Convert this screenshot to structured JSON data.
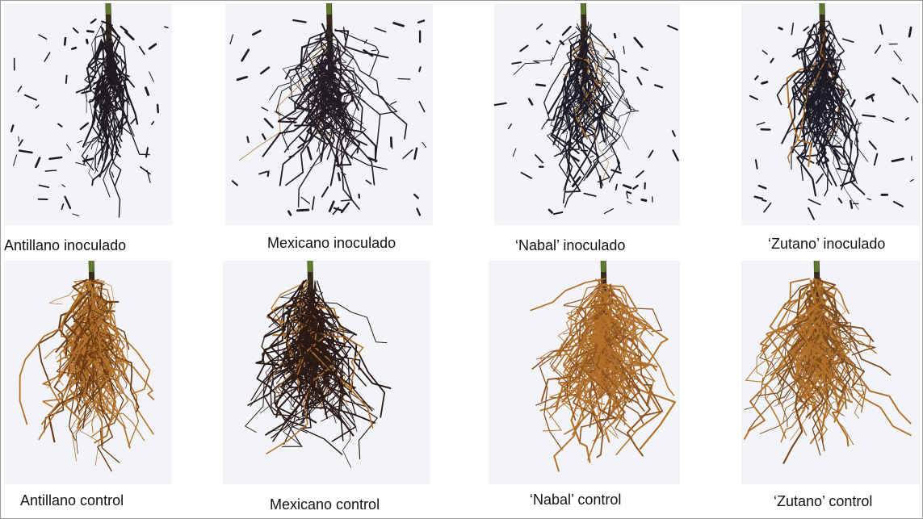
{
  "panels": [
    {
      "caption": "Antillano inoculado",
      "root_color": "#1f1a22"
    },
    {
      "caption": "Mexicano inoculado",
      "root_color": "#241c24"
    },
    {
      "caption": "‘Nabal’ inoculado",
      "root_color": "#1d1a25"
    },
    {
      "caption": "‘Zutano’ inoculado",
      "root_color": "#1e1b26"
    },
    {
      "caption": "Antillano control",
      "root_color": "#6b3b14"
    },
    {
      "caption": "Mexicano control",
      "root_color": "#2a1a16"
    },
    {
      "caption": "‘Nabal’ control",
      "root_color": "#8a5020"
    },
    {
      "caption": "‘Zutano’ control",
      "root_color": "#7a4a1e"
    }
  ],
  "colors": {
    "background": "#f3f4f8",
    "healthy_root": "#b0702a",
    "necrotic_root": "#1f1a22",
    "stem": "#3a2a1e",
    "stem_green": "#5d7a2e"
  }
}
